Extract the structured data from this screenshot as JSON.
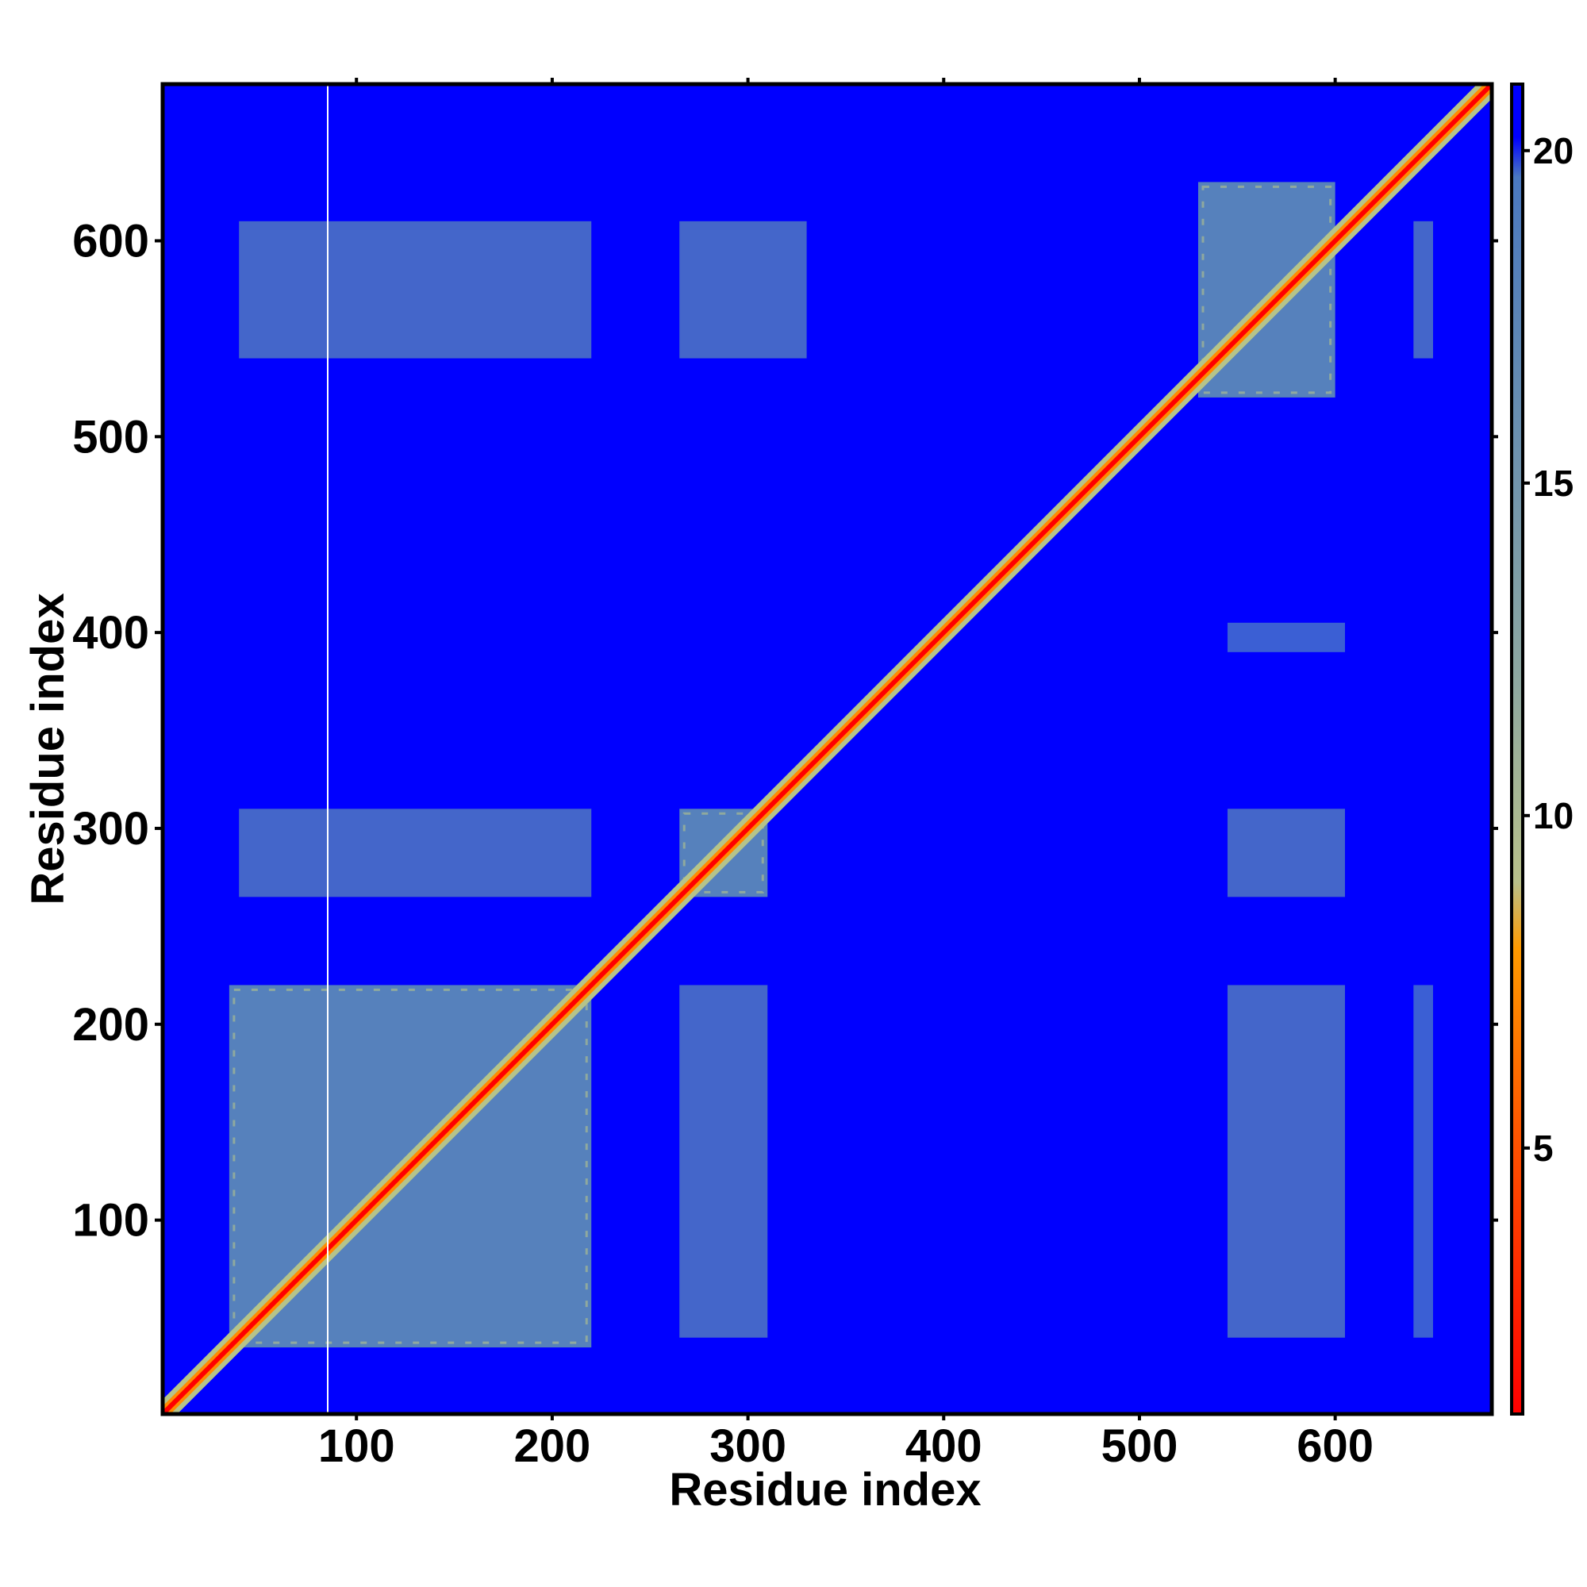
{
  "chart_data": {
    "type": "heatmap",
    "title": "",
    "xlabel": "Residue index",
    "ylabel": "Residue index",
    "xlim": [
      1,
      680
    ],
    "ylim": [
      1,
      680
    ],
    "x_ticks": [
      100,
      200,
      300,
      400,
      500,
      600
    ],
    "y_ticks": [
      100,
      200,
      300,
      400,
      500,
      600
    ],
    "colorbar": {
      "ticks": [
        5,
        10,
        15,
        20
      ],
      "range": [
        1,
        21
      ],
      "colors": {
        "low": "#ff0000",
        "mid_low": "#ff8c00",
        "mid": "#b5c48a",
        "high": "#5b88b8",
        "max": "#0000ff"
      }
    },
    "background_color": "#0000ff",
    "diagonal_color": "#ff0000",
    "domains": [
      {
        "x": [
          35,
          220
        ],
        "y": [
          35,
          220
        ],
        "level": 14
      },
      {
        "x": [
          265,
          310
        ],
        "y": [
          265,
          310
        ],
        "level": 14
      },
      {
        "x": [
          530,
          600
        ],
        "y": [
          520,
          630
        ],
        "level": 14
      }
    ],
    "contact_patches": [
      {
        "x": [
          40,
          220
        ],
        "y": [
          265,
          310
        ],
        "level": 17
      },
      {
        "x": [
          265,
          310
        ],
        "y": [
          40,
          220
        ],
        "level": 17
      },
      {
        "x": [
          40,
          220
        ],
        "y": [
          540,
          610
        ],
        "level": 18
      },
      {
        "x": [
          265,
          330
        ],
        "y": [
          540,
          610
        ],
        "level": 18
      },
      {
        "x": [
          545,
          605
        ],
        "y": [
          40,
          220
        ],
        "level": 18
      },
      {
        "x": [
          545,
          605
        ],
        "y": [
          265,
          310
        ],
        "level": 18
      },
      {
        "x": [
          545,
          605
        ],
        "y": [
          390,
          405
        ],
        "level": 19
      },
      {
        "x": [
          640,
          650
        ],
        "y": [
          540,
          610
        ],
        "level": 18
      },
      {
        "x": [
          640,
          650
        ],
        "y": [
          40,
          220
        ],
        "level": 19
      }
    ]
  }
}
